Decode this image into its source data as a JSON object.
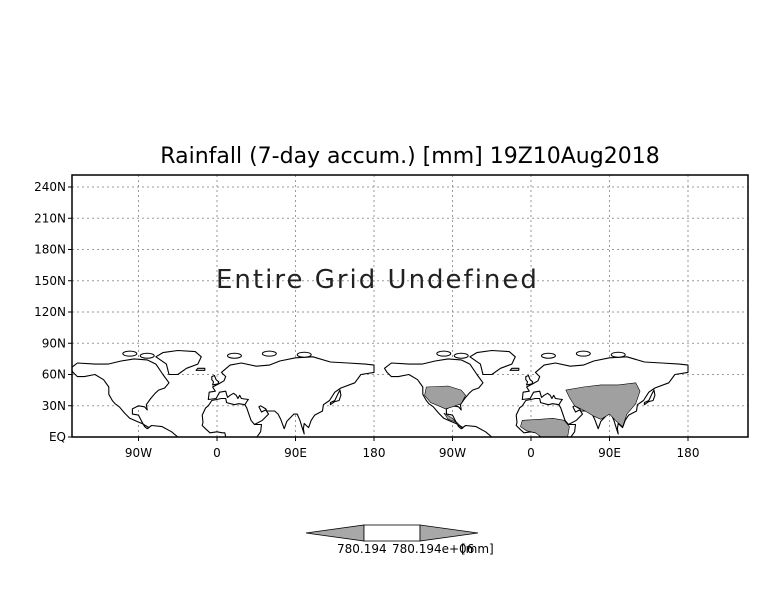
{
  "map": {
    "title": "Rainfall (7-day accum.) [mm] 19Z10Aug2018",
    "message": "Entire Grid Undefined",
    "y_ticks": [
      "240N",
      "210N",
      "180N",
      "150N",
      "120N",
      "90N",
      "60N",
      "30N",
      "EQ"
    ],
    "x_ticks": [
      "90W",
      "0",
      "90E",
      "180",
      "90W",
      "0",
      "90E",
      "180"
    ],
    "colors": {
      "frame": "#000000",
      "grid": "#9a9a9a",
      "land": "#ffffff",
      "rain_fill": "#a0a0a0",
      "colorbar_arrow": "#a8a8a8"
    }
  },
  "colorbar": {
    "label_left": "780.194",
    "label_mid": "780.194e+06",
    "label_right": "[mm]"
  }
}
